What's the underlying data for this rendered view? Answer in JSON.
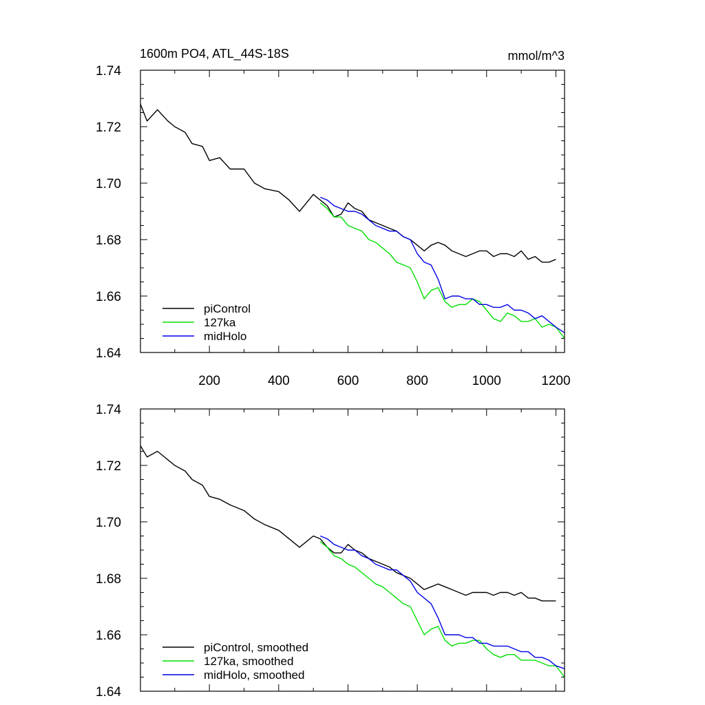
{
  "chart_data": [
    {
      "type": "line",
      "title": "1600m PO4, ATL_44S-18S",
      "units": "mmol/m^3",
      "xlabel": "",
      "ylabel": "",
      "xlim": [
        1,
        1225
      ],
      "ylim": [
        1.64,
        1.74
      ],
      "xticks": [
        200,
        400,
        600,
        800,
        1000,
        1200
      ],
      "xtick_labels": [
        "200",
        "400",
        "600",
        "800",
        "1000",
        "1200"
      ],
      "yticks": [
        1.64,
        1.66,
        1.68,
        1.7,
        1.72,
        1.74
      ],
      "ytick_labels": [
        "1.64",
        "1.66",
        "1.68",
        "1.70",
        "1.72",
        "1.74"
      ],
      "legend_position": "bottom-left",
      "series": [
        {
          "name": "piControl",
          "color": "#000000",
          "x": [
            1,
            20,
            50,
            80,
            100,
            130,
            150,
            180,
            200,
            230,
            260,
            300,
            330,
            360,
            400,
            430,
            460,
            480,
            500,
            520,
            540,
            560,
            580,
            600,
            620,
            640,
            660,
            680,
            700,
            720,
            740,
            760,
            780,
            800,
            820,
            840,
            860,
            880,
            900,
            920,
            940,
            960,
            980,
            1000,
            1020,
            1040,
            1060,
            1080,
            1100,
            1120,
            1140,
            1160,
            1180,
            1200
          ],
          "y": [
            1.728,
            1.722,
            1.726,
            1.722,
            1.72,
            1.718,
            1.714,
            1.713,
            1.708,
            1.709,
            1.705,
            1.705,
            1.7,
            1.698,
            1.697,
            1.694,
            1.69,
            1.693,
            1.696,
            1.694,
            1.692,
            1.688,
            1.689,
            1.693,
            1.691,
            1.69,
            1.687,
            1.686,
            1.685,
            1.684,
            1.683,
            1.681,
            1.68,
            1.678,
            1.676,
            1.678,
            1.679,
            1.678,
            1.676,
            1.675,
            1.674,
            1.675,
            1.676,
            1.676,
            1.674,
            1.675,
            1.675,
            1.674,
            1.676,
            1.673,
            1.674,
            1.672,
            1.672,
            1.673
          ]
        },
        {
          "name": "127ka",
          "color": "#00e000",
          "x": [
            520,
            540,
            560,
            580,
            600,
            620,
            640,
            660,
            680,
            700,
            720,
            740,
            760,
            780,
            800,
            820,
            840,
            860,
            880,
            900,
            920,
            940,
            960,
            980,
            1000,
            1020,
            1040,
            1060,
            1080,
            1100,
            1120,
            1140,
            1160,
            1180,
            1200,
            1225
          ],
          "y": [
            1.693,
            1.691,
            1.688,
            1.688,
            1.685,
            1.684,
            1.683,
            1.68,
            1.679,
            1.677,
            1.675,
            1.672,
            1.671,
            1.67,
            1.665,
            1.659,
            1.662,
            1.663,
            1.658,
            1.656,
            1.657,
            1.657,
            1.659,
            1.658,
            1.655,
            1.652,
            1.651,
            1.654,
            1.653,
            1.651,
            1.651,
            1.652,
            1.649,
            1.65,
            1.649,
            1.645
          ]
        },
        {
          "name": "midHolo",
          "color": "#0000e6",
          "x": [
            520,
            540,
            560,
            580,
            600,
            620,
            640,
            660,
            680,
            700,
            720,
            740,
            760,
            780,
            800,
            820,
            840,
            860,
            880,
            900,
            920,
            940,
            960,
            980,
            1000,
            1020,
            1040,
            1060,
            1080,
            1100,
            1120,
            1140,
            1160,
            1180,
            1200,
            1225
          ],
          "y": [
            1.695,
            1.694,
            1.692,
            1.691,
            1.69,
            1.69,
            1.689,
            1.687,
            1.685,
            1.684,
            1.683,
            1.683,
            1.681,
            1.68,
            1.675,
            1.672,
            1.671,
            1.666,
            1.659,
            1.66,
            1.66,
            1.659,
            1.659,
            1.657,
            1.657,
            1.656,
            1.656,
            1.657,
            1.655,
            1.655,
            1.654,
            1.652,
            1.653,
            1.651,
            1.649,
            1.647
          ]
        }
      ]
    },
    {
      "type": "line",
      "title": "",
      "xlabel": "",
      "ylabel": "",
      "xlim": [
        1,
        1225
      ],
      "ylim": [
        1.64,
        1.74
      ],
      "xticks": [
        200,
        400,
        600,
        800,
        1000,
        1200
      ],
      "yticks": [
        1.64,
        1.66,
        1.68,
        1.7,
        1.72,
        1.74
      ],
      "ytick_labels": [
        "1.64",
        "1.66",
        "1.68",
        "1.70",
        "1.72",
        "1.74"
      ],
      "legend_position": "bottom-left",
      "series": [
        {
          "name": "piControl, smoothed",
          "color": "#000000",
          "x": [
            1,
            20,
            50,
            80,
            100,
            130,
            150,
            180,
            200,
            230,
            260,
            300,
            330,
            360,
            400,
            430,
            460,
            480,
            500,
            520,
            540,
            560,
            580,
            600,
            620,
            640,
            660,
            680,
            700,
            720,
            740,
            760,
            780,
            800,
            820,
            840,
            860,
            880,
            900,
            920,
            940,
            960,
            980,
            1000,
            1020,
            1040,
            1060,
            1080,
            1100,
            1120,
            1140,
            1160,
            1180,
            1200
          ],
          "y": [
            1.727,
            1.723,
            1.725,
            1.722,
            1.72,
            1.718,
            1.715,
            1.713,
            1.709,
            1.708,
            1.706,
            1.704,
            1.701,
            1.699,
            1.697,
            1.694,
            1.691,
            1.693,
            1.695,
            1.694,
            1.691,
            1.689,
            1.689,
            1.692,
            1.69,
            1.689,
            1.687,
            1.686,
            1.685,
            1.684,
            1.682,
            1.681,
            1.68,
            1.678,
            1.676,
            1.677,
            1.678,
            1.677,
            1.676,
            1.675,
            1.674,
            1.675,
            1.675,
            1.675,
            1.674,
            1.675,
            1.675,
            1.674,
            1.675,
            1.673,
            1.673,
            1.672,
            1.672,
            1.672
          ]
        },
        {
          "name": "127ka, smoothed",
          "color": "#00e000",
          "x": [
            520,
            540,
            560,
            580,
            600,
            620,
            640,
            660,
            680,
            700,
            720,
            740,
            760,
            780,
            800,
            820,
            840,
            860,
            880,
            900,
            920,
            940,
            960,
            980,
            1000,
            1020,
            1040,
            1060,
            1080,
            1100,
            1120,
            1140,
            1160,
            1180,
            1200,
            1225
          ],
          "y": [
            1.693,
            1.691,
            1.688,
            1.687,
            1.685,
            1.684,
            1.682,
            1.68,
            1.678,
            1.677,
            1.675,
            1.673,
            1.671,
            1.67,
            1.665,
            1.66,
            1.662,
            1.663,
            1.658,
            1.656,
            1.657,
            1.657,
            1.658,
            1.658,
            1.655,
            1.653,
            1.652,
            1.653,
            1.653,
            1.651,
            1.651,
            1.651,
            1.65,
            1.649,
            1.649,
            1.645
          ]
        },
        {
          "name": "midHolo, smoothed",
          "color": "#0000e6",
          "x": [
            520,
            540,
            560,
            580,
            600,
            620,
            640,
            660,
            680,
            700,
            720,
            740,
            760,
            780,
            800,
            820,
            840,
            860,
            880,
            900,
            920,
            940,
            960,
            980,
            1000,
            1020,
            1040,
            1060,
            1080,
            1100,
            1120,
            1140,
            1160,
            1180,
            1200,
            1225
          ],
          "y": [
            1.695,
            1.694,
            1.692,
            1.691,
            1.69,
            1.69,
            1.688,
            1.687,
            1.685,
            1.684,
            1.683,
            1.683,
            1.681,
            1.679,
            1.675,
            1.673,
            1.671,
            1.666,
            1.66,
            1.66,
            1.66,
            1.659,
            1.659,
            1.657,
            1.657,
            1.656,
            1.656,
            1.656,
            1.655,
            1.654,
            1.654,
            1.652,
            1.652,
            1.651,
            1.649,
            1.648
          ]
        }
      ]
    }
  ]
}
